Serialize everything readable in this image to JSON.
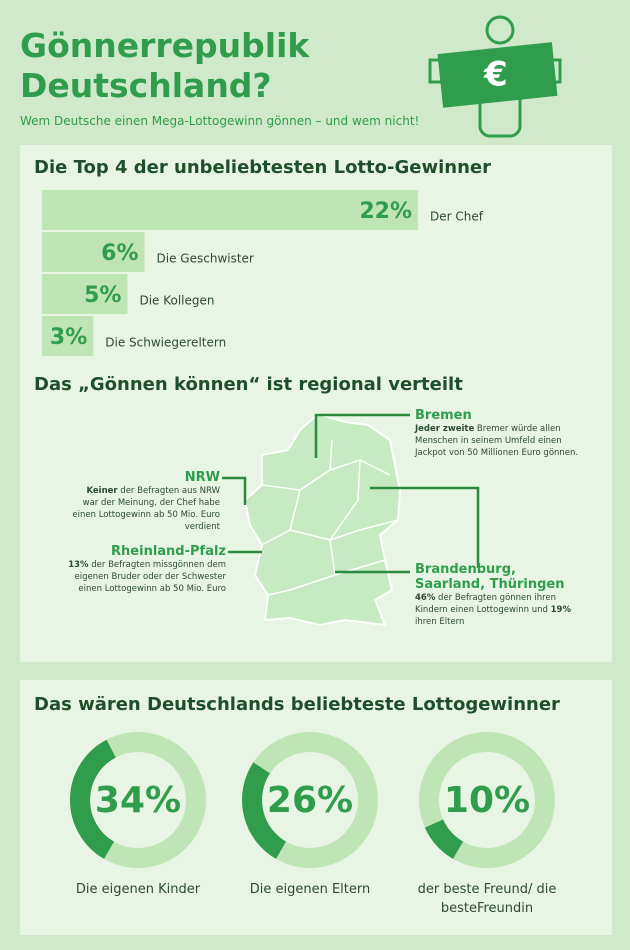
{
  "header": {
    "title": "Gönnerrepublik Deutschland?",
    "subtitle": "Wem Deutsche einen Mega-Lottogewinn gönnen – und wem nicht!"
  },
  "chart_data": [
    {
      "type": "bar",
      "title": "Die Top 4 der unbeliebtesten Lotto-Gewinner",
      "categories": [
        "Der Chef",
        "Die Geschwister",
        "Die Kollegen",
        "Die Schwiegereltern"
      ],
      "values": [
        22,
        6,
        5,
        3
      ],
      "value_labels": [
        "22%",
        "6%",
        "5%",
        "3%"
      ],
      "color": "#bfe4b6"
    },
    {
      "type": "donut",
      "title": "Das wären Deutschlands beliebteste Lottogewinner",
      "categories": [
        "Die eigenen Kinder",
        "Die eigenen Eltern",
        "der beste Freund/ die besteFreundin"
      ],
      "values": [
        34,
        26,
        10
      ],
      "value_labels": [
        "34%",
        "26%",
        "10%"
      ],
      "color": "#2f9d4b"
    }
  ],
  "map": {
    "title": "Das „Gönnen können“ ist regional verteilt",
    "regions": [
      {
        "name": "Bremen",
        "parts": [
          {
            "text": "Jeder zweite",
            "bold": true
          },
          {
            "text": " Bremer würde allen Menschen in seinem Umfeld einen Jackpot von 50 Millionen Euro gönnen.",
            "bold": false
          }
        ]
      },
      {
        "name": "NRW",
        "parts": [
          {
            "text": "Keiner",
            "bold": true
          },
          {
            "text": " der Befragten aus NRW war der Meinung, der Chef habe einen Lottogewinn ab 50 Mio. Euro verdient",
            "bold": false
          }
        ]
      },
      {
        "name": "Rheinland-Pfalz",
        "parts": [
          {
            "text": "13%",
            "bold": true
          },
          {
            "text": " der Befragten missgönnen dem eigenen Bruder oder der Schwester einen Lottogewinn ab 50 Mio. Euro",
            "bold": false
          }
        ]
      },
      {
        "name": "Brandenburg, Saarland, Thüringen",
        "parts": [
          {
            "text": "46%",
            "bold": true
          },
          {
            "text": " der Befragten gönnen ihren Kindern einen Lottogewinn und ",
            "bold": false
          },
          {
            "text": "19%",
            "bold": true
          },
          {
            "text": " ihren Eltern",
            "bold": false
          }
        ]
      }
    ]
  }
}
